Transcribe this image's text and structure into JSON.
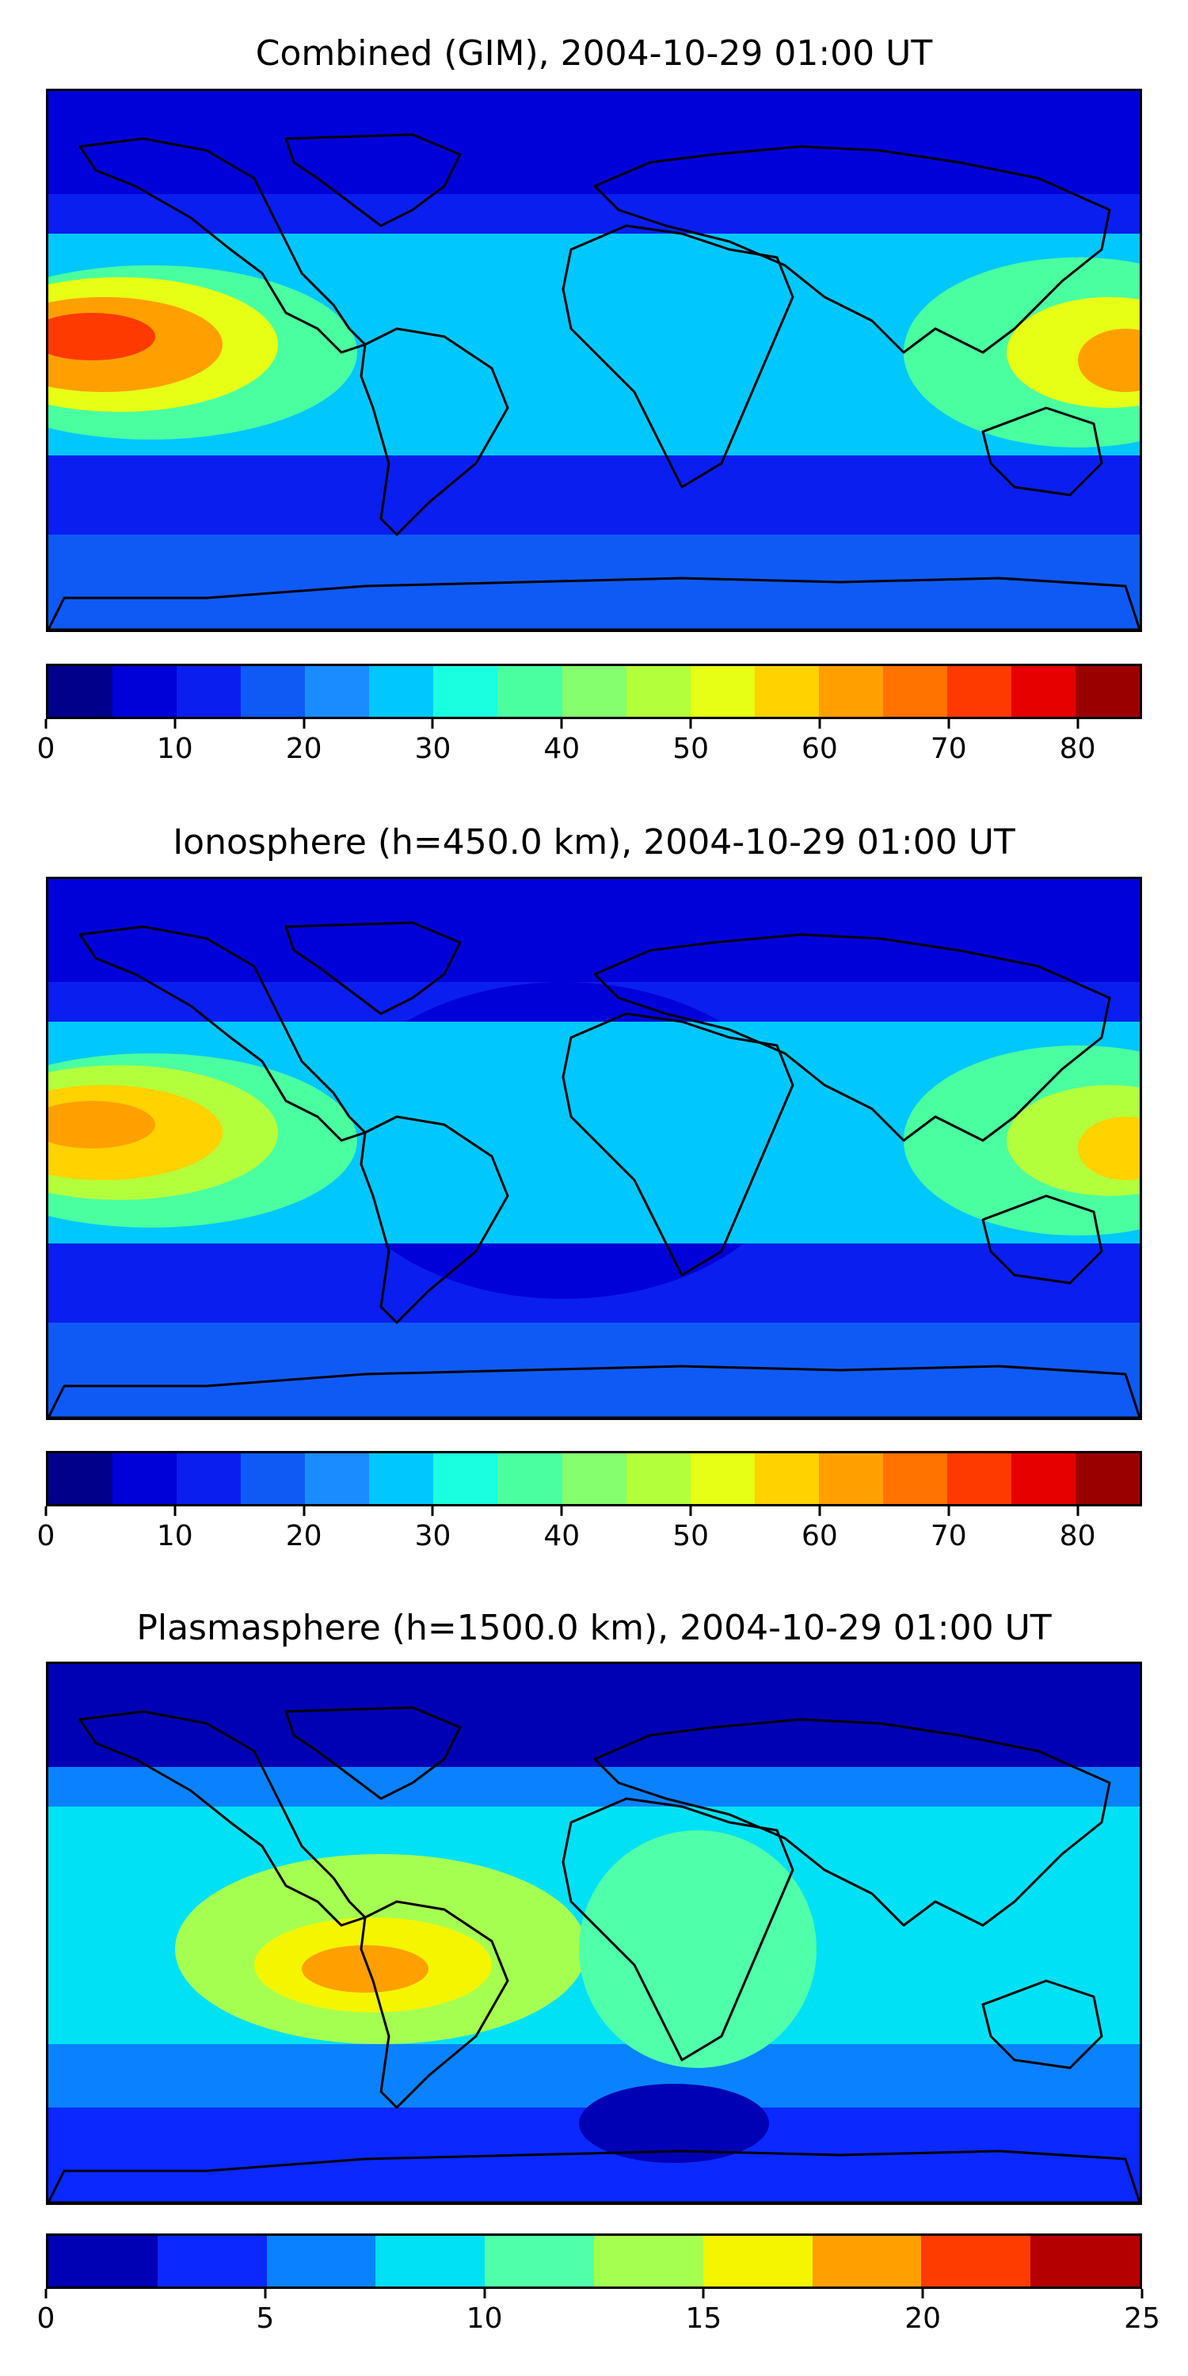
{
  "panels": [
    {
      "title": "Combined (GIM), 2004-10-29 01:00 UT",
      "colorbar": {
        "colors": [
          "#00008b",
          "#0000d9",
          "#0a1ef0",
          "#0f5af5",
          "#1a8cff",
          "#00c8ff",
          "#1affe0",
          "#4affa0",
          "#85ff6e",
          "#b4ff3c",
          "#e6ff14",
          "#ffd200",
          "#ffa000",
          "#ff7300",
          "#ff3a00",
          "#e60000",
          "#9b0000"
        ],
        "ticks": [
          "0",
          "10",
          "20",
          "30",
          "40",
          "50",
          "60",
          "70",
          "80"
        ],
        "tick_values": [
          0,
          10,
          20,
          30,
          40,
          50,
          60,
          70,
          80
        ],
        "range": [
          0,
          85
        ]
      },
      "map_colors": {
        "base": "#0a1ef0",
        "cold": "#0000d9",
        "mid": "#0f5af5",
        "warm": "#00c8ff",
        "hot1": "#4affa0",
        "hot2": "#e6ff14",
        "hot3": "#ffa000",
        "hot4": "#ff3a00"
      }
    },
    {
      "title": "Ionosphere  (h=450.0 km), 2004-10-29 01:00 UT",
      "colorbar": {
        "colors": [
          "#00008b",
          "#0000d9",
          "#0a1ef0",
          "#0f5af5",
          "#1a8cff",
          "#00c8ff",
          "#1affe0",
          "#4affa0",
          "#85ff6e",
          "#b4ff3c",
          "#e6ff14",
          "#ffd200",
          "#ffa000",
          "#ff7300",
          "#ff3a00",
          "#e60000",
          "#9b0000"
        ],
        "ticks": [
          "0",
          "10",
          "20",
          "30",
          "40",
          "50",
          "60",
          "70",
          "80"
        ],
        "tick_values": [
          0,
          10,
          20,
          30,
          40,
          50,
          60,
          70,
          80
        ],
        "range": [
          0,
          85
        ]
      },
      "map_colors": {
        "base": "#0a1ef0",
        "cold": "#0000d9",
        "mid": "#0f5af5",
        "warm": "#00c8ff",
        "hot1": "#4affa0",
        "hot2": "#b4ff3c",
        "hot3": "#ffd200",
        "hot4": "#ffa000"
      }
    },
    {
      "title": "Plasmasphere (h=1500.0 km), 2004-10-29 01:00 UT",
      "colorbar": {
        "colors": [
          "#0000b4",
          "#0a28ff",
          "#0a82ff",
          "#00e1f5",
          "#50ffaa",
          "#a5ff50",
          "#f5f500",
          "#ffa000",
          "#ff3c00",
          "#b40000"
        ],
        "ticks": [
          "0",
          "5",
          "10",
          "15",
          "20",
          "25"
        ],
        "tick_values": [
          0,
          5,
          10,
          15,
          20,
          25
        ],
        "range": [
          0,
          25
        ]
      },
      "map_colors": {
        "base": "#0a82ff",
        "cold": "#0000b4",
        "mid": "#0a28ff",
        "warm": "#00e1f5",
        "hot1": "#50ffaa",
        "hot2": "#a5ff50",
        "hot3": "#f5f500",
        "hot4": "#ffa000"
      }
    }
  ]
}
